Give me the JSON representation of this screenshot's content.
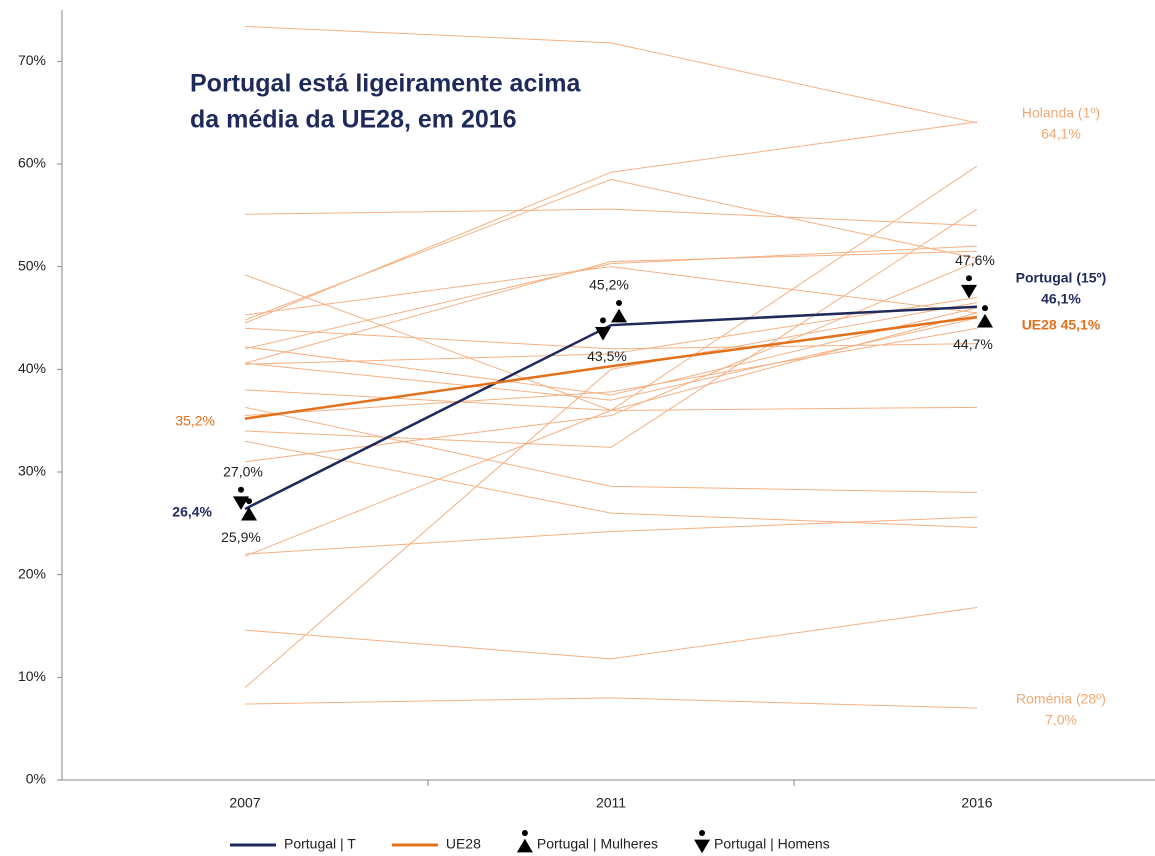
{
  "chart_data": {
    "type": "line",
    "title": [
      "Portugal está ligeiramente acima",
      "da média da UE28, em 2016"
    ],
    "categories": [
      "2007",
      "2011",
      "2016"
    ],
    "ylim": [
      0,
      75
    ],
    "yticks": [
      {
        "value": 0,
        "label": "0%"
      },
      {
        "value": 10,
        "label": "10%"
      },
      {
        "value": 20,
        "label": "20%"
      },
      {
        "value": 30,
        "label": "30%"
      },
      {
        "value": 40,
        "label": "40%"
      },
      {
        "value": 50,
        "label": "50%"
      },
      {
        "value": 60,
        "label": "60%"
      },
      {
        "value": 70,
        "label": "70%"
      }
    ],
    "background_color": "#f4b183",
    "background_lines": [
      [
        73.4,
        71.8,
        64.0
      ],
      [
        44.5,
        59.2,
        64.1
      ],
      [
        44.8,
        58.5,
        50.8
      ],
      [
        55.1,
        55.6,
        54.0
      ],
      [
        49.2,
        36.0,
        45.5
      ],
      [
        42.0,
        50.3,
        52.0
      ],
      [
        45.3,
        50.0,
        45.5
      ],
      [
        42.2,
        37.5,
        46.0
      ],
      [
        40.6,
        37.0,
        45.0
      ],
      [
        40.5,
        41.5,
        47.0
      ],
      [
        38.0,
        36.0,
        36.3
      ],
      [
        36.3,
        28.6,
        28.0
      ],
      [
        34.0,
        32.4,
        55.6
      ],
      [
        33.0,
        26.0,
        24.6
      ],
      [
        31.0,
        35.5,
        50.5
      ],
      [
        22.0,
        24.2,
        25.6
      ],
      [
        21.8,
        36.0,
        59.8
      ],
      [
        14.6,
        11.8,
        16.8
      ],
      [
        9.0,
        40.0,
        46.5
      ],
      [
        7.4,
        8.0,
        7.0
      ],
      [
        40.6,
        50.5,
        51.5
      ],
      [
        35.5,
        37.8,
        44.0
      ],
      [
        44.0,
        42.0,
        42.5
      ]
    ],
    "series": [
      {
        "name": "Portugal | T",
        "color": "#1f2a5c",
        "marker": "line",
        "values": [
          26.4,
          44.3,
          46.1
        ]
      },
      {
        "name": "UE28",
        "color": "#e3701b",
        "marker": "line",
        "values": [
          35.2,
          40.3,
          45.1
        ]
      },
      {
        "name": "Portugal | Mulheres",
        "color": "#000000",
        "marker": "triangle-up",
        "values": [
          25.9,
          45.2,
          44.7
        ],
        "value_labels": [
          "25,9%",
          "45,2%",
          "44,7%"
        ]
      },
      {
        "name": "Portugal | Homens",
        "color": "#000000",
        "marker": "triangle-down",
        "values": [
          27.0,
          43.5,
          47.6
        ],
        "value_labels": [
          "27,0%",
          "43,5%",
          "47,6%"
        ]
      }
    ],
    "annotations": [
      "35,2%",
      "26,4%",
      "Portugal (15º)",
      "46,1%",
      "UE28 45,1%",
      "Holanda (1º)",
      "64,1%",
      "Roménia (28º)",
      "7,0%"
    ]
  }
}
